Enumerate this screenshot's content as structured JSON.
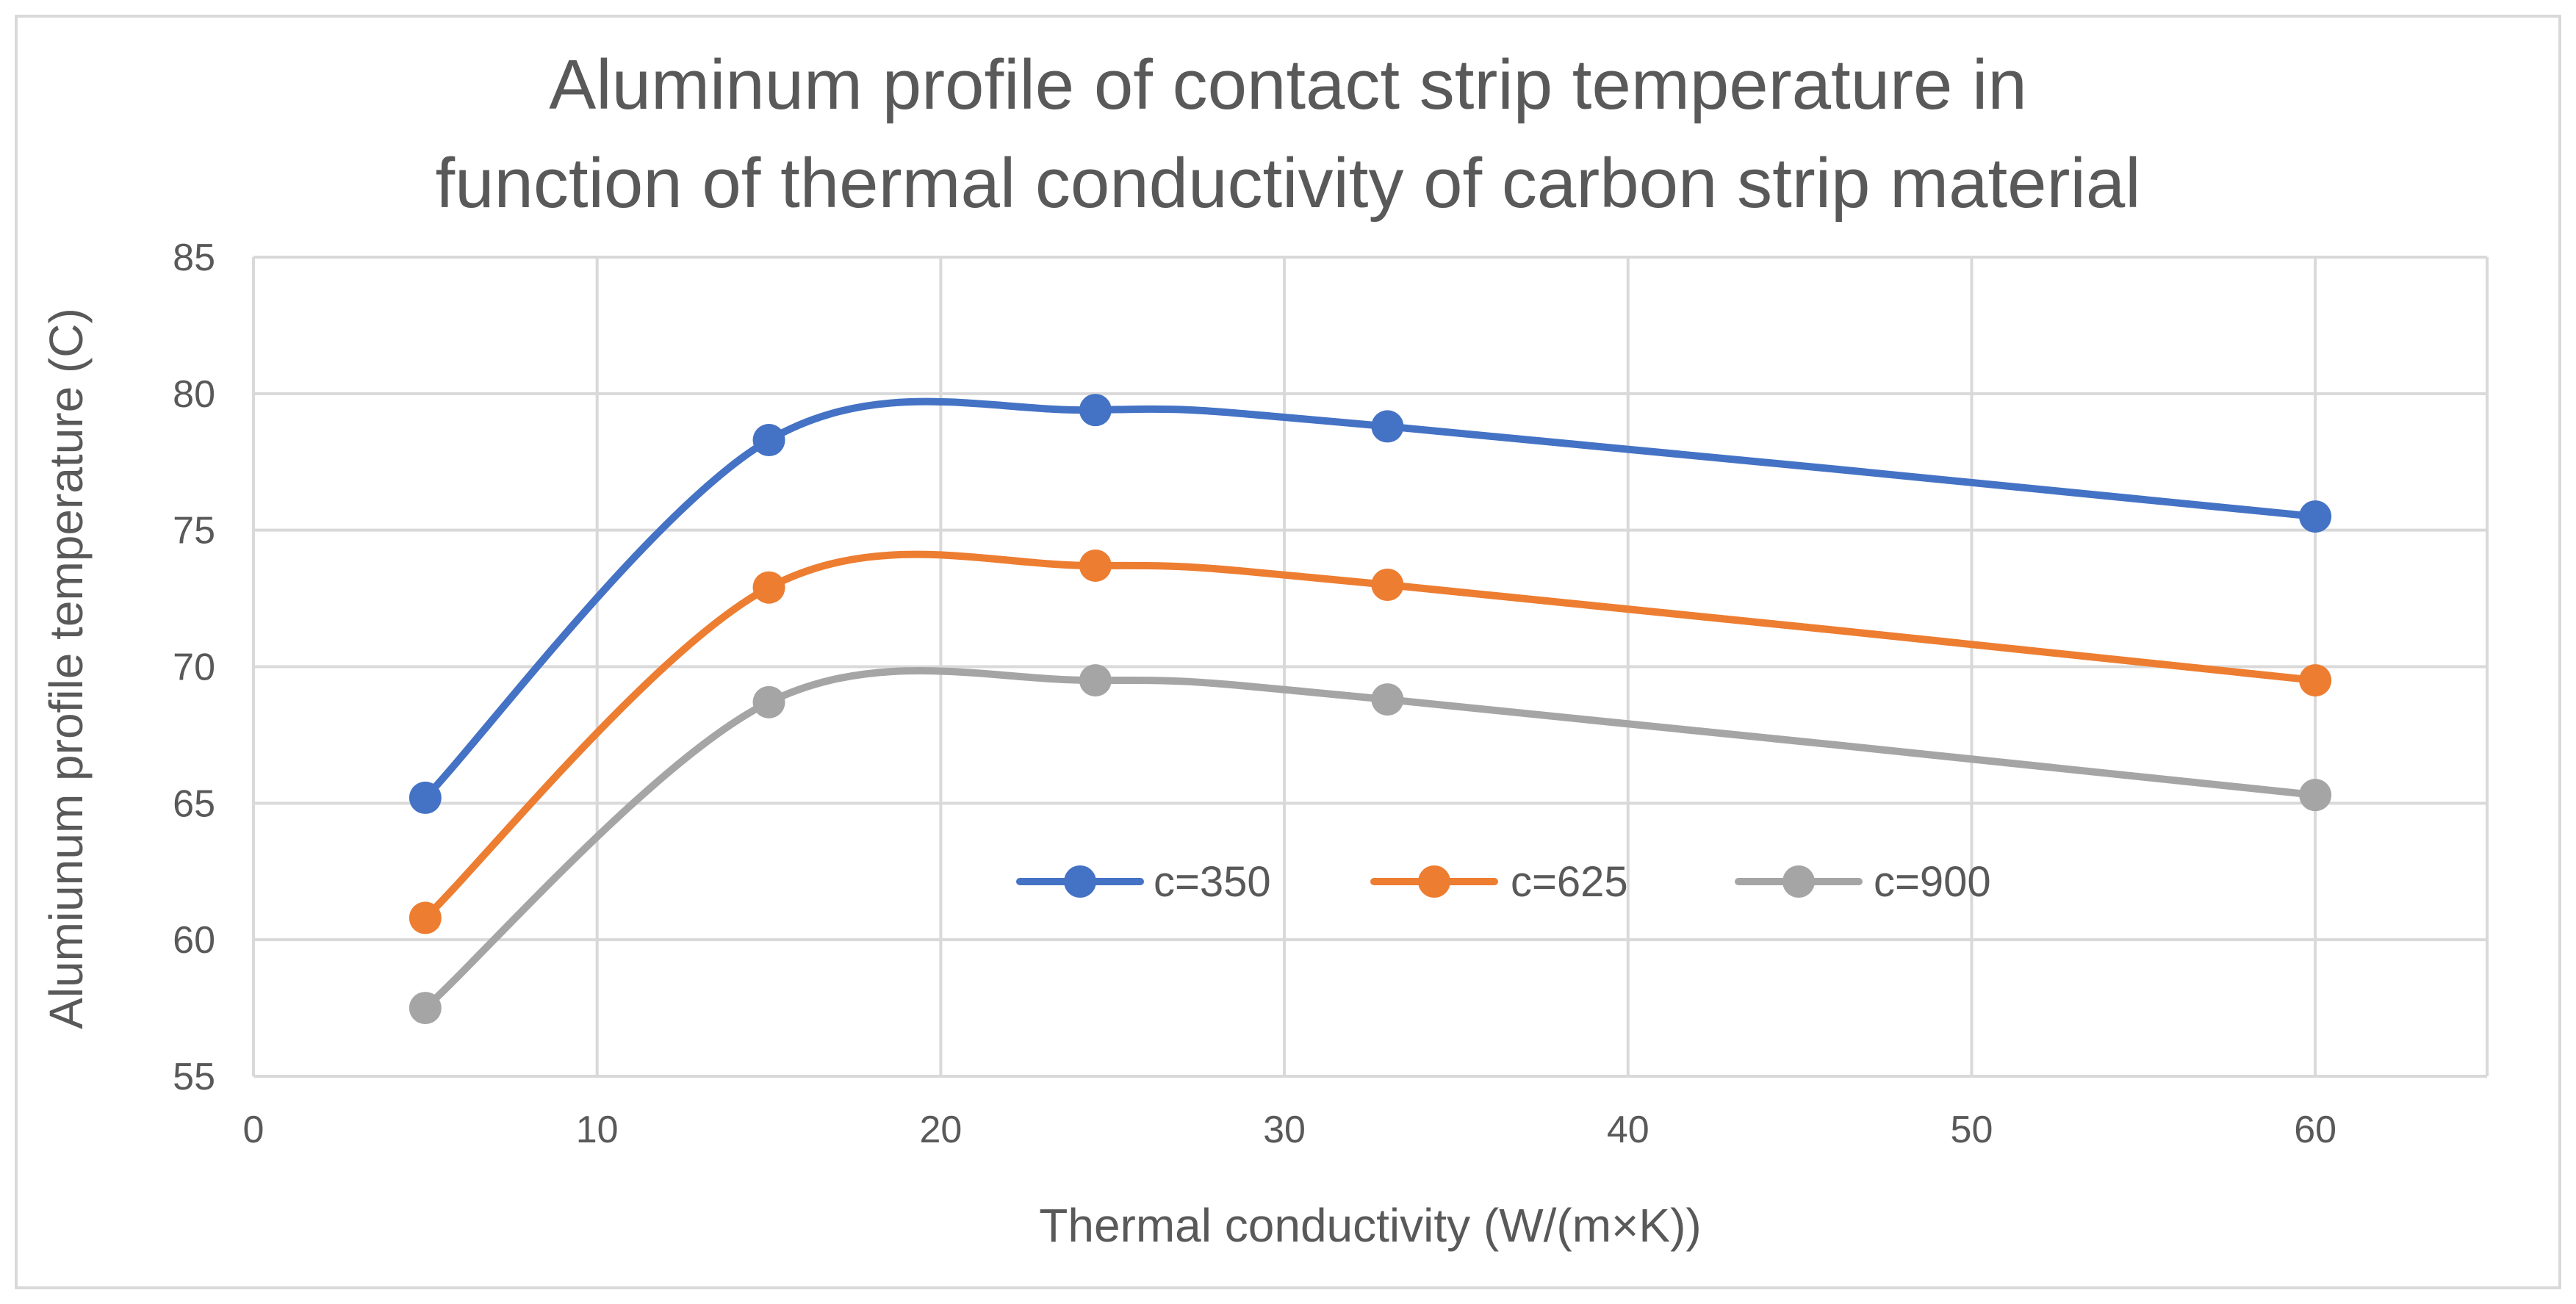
{
  "chart_data": {
    "type": "line",
    "title_lines": [
      "Aluminum profile of contact strip temperature in",
      "function of thermal conductivity of carbon strip material"
    ],
    "xlabel": "Thermal conductivity (W/(m×K))",
    "ylabel": "Alumiunum profile temperature (C)",
    "xlim": [
      0,
      65
    ],
    "ylim": [
      55,
      85
    ],
    "x_ticks": [
      "0",
      "10",
      "20",
      "30",
      "40",
      "50",
      "60"
    ],
    "y_ticks": [
      "55",
      "60",
      "65",
      "70",
      "75",
      "80",
      "85"
    ],
    "grid": true,
    "smooth": true,
    "legend_position": "inside-center-bottom",
    "x": [
      5,
      15,
      24.5,
      33,
      60
    ],
    "series": [
      {
        "name": "c=350",
        "color": "#4472C4",
        "values": [
          65.2,
          78.3,
          79.4,
          78.8,
          75.5
        ]
      },
      {
        "name": "c=625",
        "color": "#ED7D31",
        "values": [
          60.8,
          72.9,
          73.7,
          73.0,
          69.5
        ]
      },
      {
        "name": "c=900",
        "color": "#A5A5A5",
        "values": [
          57.5,
          68.7,
          69.5,
          68.8,
          65.3
        ]
      }
    ]
  }
}
